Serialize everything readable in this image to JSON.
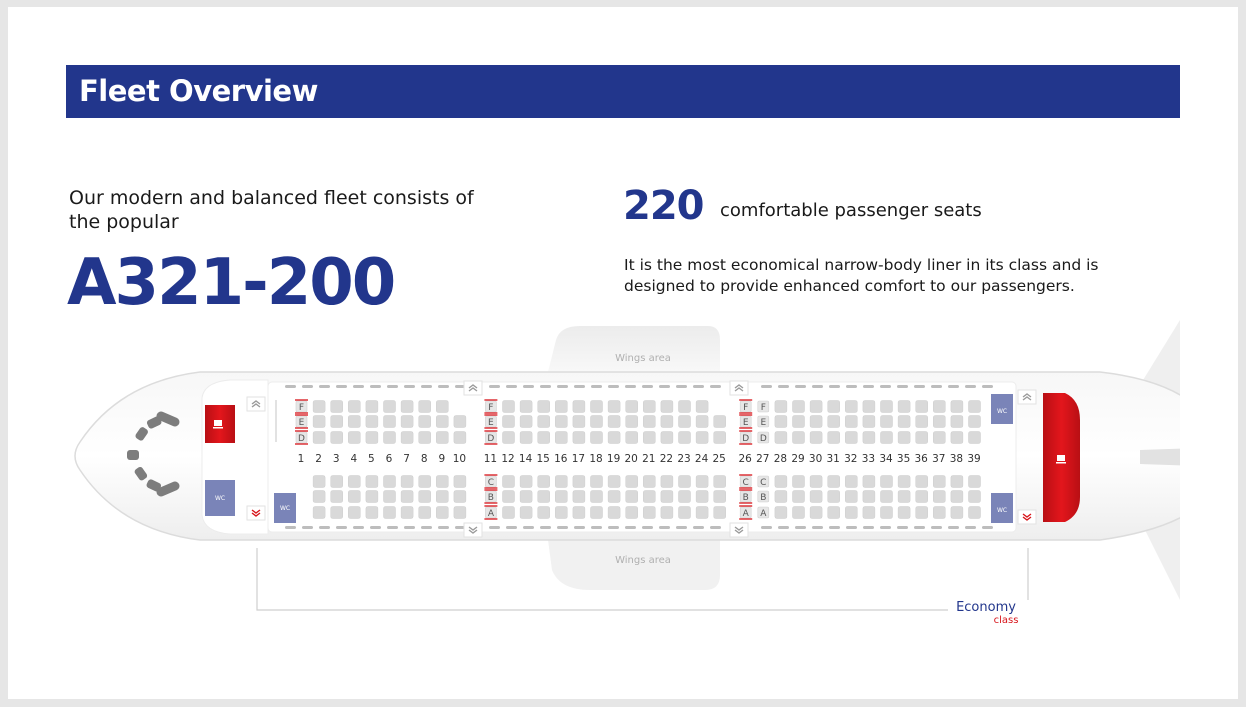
{
  "header": {
    "title": "Fleet Overview"
  },
  "intro": {
    "text": "Our modern and balanced fleet consists of the popular",
    "model": "A321-200"
  },
  "seats": {
    "count": "220",
    "label": "comfortable passenger seats"
  },
  "description": "It is the most economical narrow-body liner in its class and is designed to provide enhanced comfort to our passengers.",
  "seat_map": {
    "wings_label_top": "Wings area",
    "wings_label_bottom": "Wings area",
    "wc_label": "WC",
    "rows": [
      "1",
      "2",
      "3",
      "4",
      "5",
      "6",
      "7",
      "8",
      "9",
      "10",
      "11",
      "12",
      "14",
      "15",
      "16",
      "17",
      "18",
      "19",
      "20",
      "21",
      "22",
      "23",
      "24",
      "25",
      "26",
      "27",
      "28",
      "29",
      "30",
      "31",
      "32",
      "33",
      "34",
      "35",
      "36",
      "37",
      "38",
      "39"
    ],
    "seat_letters_top": [
      "F",
      "E",
      "D"
    ],
    "seat_letters_bottom": [
      "C",
      "B",
      "A"
    ],
    "legend": {
      "class_name": "Economy",
      "class_suffix": "class"
    },
    "colors": {
      "galley": "#d7141a",
      "wc": "#7a84b8",
      "seat": "#d9d9d9",
      "exit": "#d7141a",
      "accent": "#22368c"
    }
  }
}
